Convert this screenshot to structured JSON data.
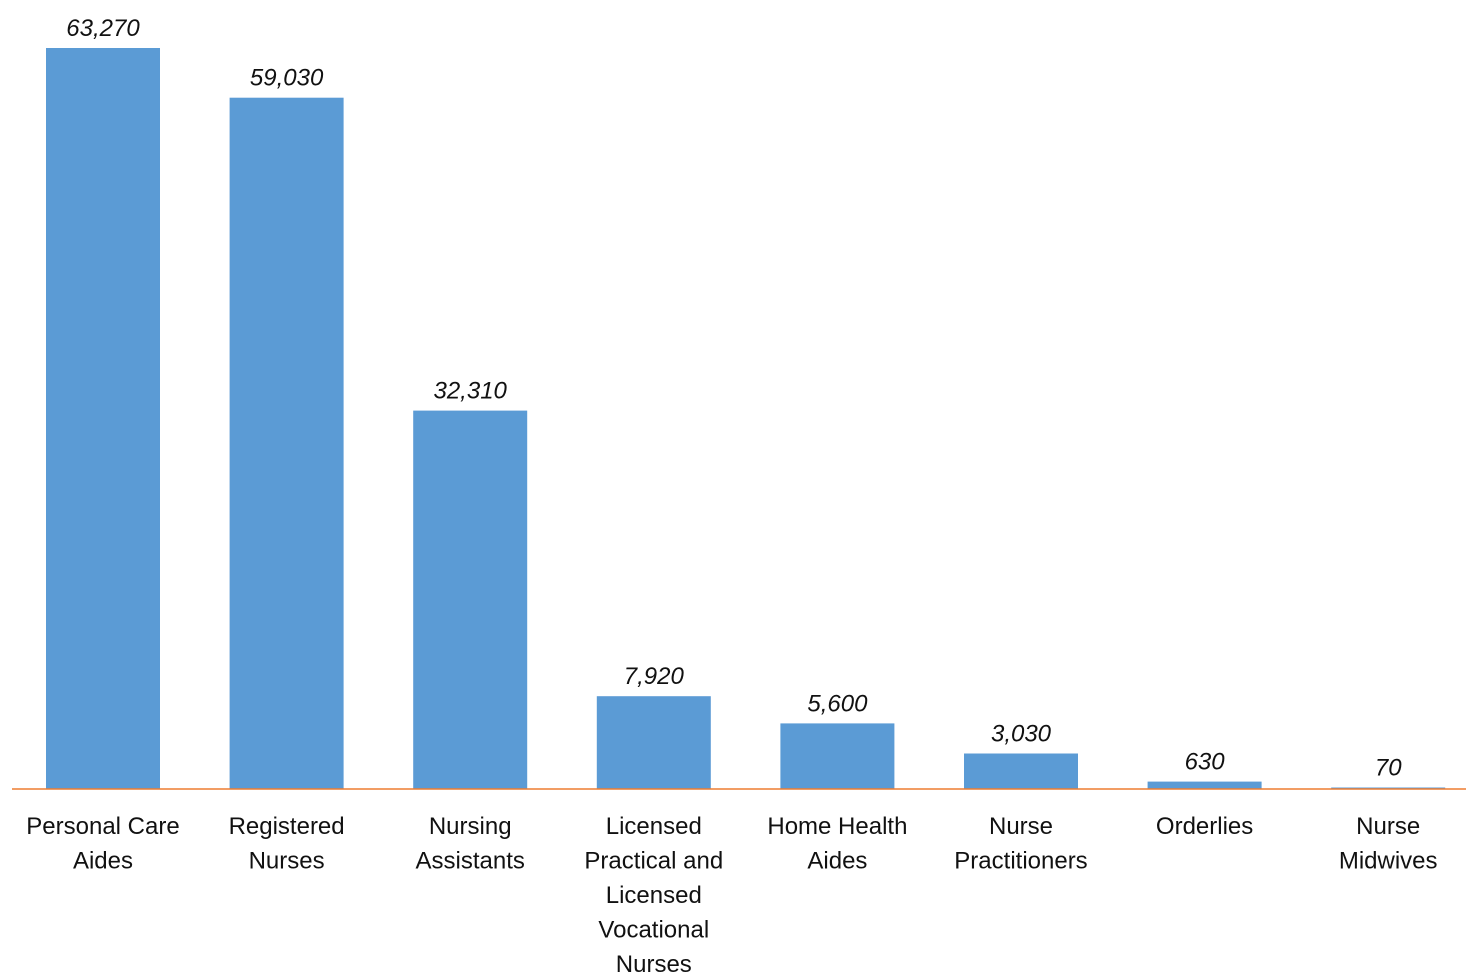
{
  "chart_data": {
    "type": "bar",
    "categories": [
      [
        "Personal Care",
        "Aides"
      ],
      [
        "Registered",
        "Nurses"
      ],
      [
        "Nursing",
        "Assistants"
      ],
      [
        "Licensed",
        "Practical and",
        "Licensed",
        "Vocational",
        "Nurses"
      ],
      [
        "Home Health",
        "Aides"
      ],
      [
        "Nurse",
        "Practitioners"
      ],
      [
        "Orderlies"
      ],
      [
        "Nurse",
        "Midwives"
      ]
    ],
    "values": [
      63270,
      59030,
      32310,
      7920,
      5600,
      3030,
      630,
      70
    ],
    "data_labels": [
      "63,270",
      "59,030",
      "32,310",
      "7,920",
      "5,600",
      "3,030",
      "630",
      "70"
    ],
    "title": "",
    "xlabel": "",
    "ylabel": "",
    "ylim": [
      0,
      63270
    ],
    "grid": false,
    "legend": "none",
    "colors": {
      "bar": "#5B9BD5",
      "axis": "#ED7D31",
      "text": "#111111"
    }
  }
}
